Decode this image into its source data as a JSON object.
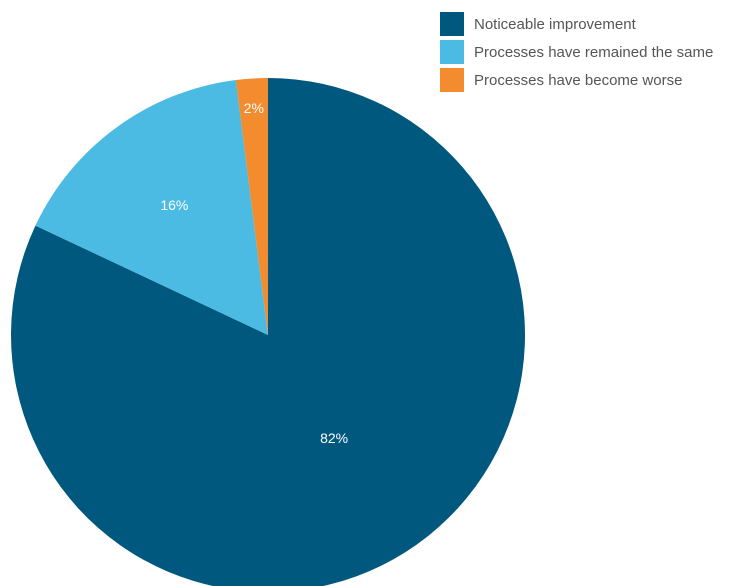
{
  "chart_data": {
    "type": "pie",
    "title": "",
    "legend_position": "top-right",
    "series": [
      {
        "name": "",
        "values": [
          82,
          16,
          2
        ]
      }
    ],
    "categories": [
      "Noticeable improvement",
      "Processes have remained the same",
      "Processes have become worse"
    ],
    "slices": [
      {
        "label": "Noticeable improvement",
        "value": 82,
        "value_label": "82%",
        "color": "#00587e"
      },
      {
        "label": "Processes have remained the same",
        "value": 16,
        "value_label": "16%",
        "color": "#4cbbe4"
      },
      {
        "label": "Processes have become worse",
        "value": 2,
        "value_label": "2%",
        "color": "#f28c2e"
      }
    ],
    "start_angle": "12 o'clock",
    "direction": "clockwise"
  }
}
